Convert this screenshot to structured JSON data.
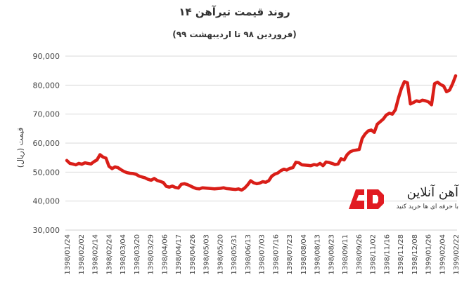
{
  "chart_data": {
    "type": "line",
    "title": "روند قیمت تیرآهن ۱۴",
    "subtitle": "(فروردین ۹۸ تا اردیبهشت ۹۹)",
    "ylabel": "قیمت (ریال)",
    "xlabel": "",
    "ylim": [
      30000,
      90000
    ],
    "y_ticks": [
      30000,
      40000,
      50000,
      60000,
      70000,
      80000,
      90000
    ],
    "y_tick_labels": [
      "30,000",
      "40,000",
      "50,000",
      "60,000",
      "70,000",
      "80,000",
      "90,000"
    ],
    "x_tick_labels": [
      "1398/01/24",
      "1398/02/02",
      "1398/02/14",
      "1398/02/24",
      "1398/03/04",
      "1398/03/20",
      "1398/03/29",
      "1398/04/06",
      "1398/04/17",
      "1398/04/26",
      "1398/05/03",
      "1398/05/20",
      "1398/05/31",
      "1398/06/13",
      "1398/07/03",
      "1398/07/16",
      "1398/07/23",
      "1398/08/04",
      "1398/08/13",
      "1398/08/23",
      "1398/09/11",
      "1398/09/26",
      "1398/11/02",
      "1398/11/16",
      "1398/11/28",
      "1398/12/08",
      "1399/01/26",
      "1399/02/04",
      "1399/02/22"
    ],
    "grid": true,
    "legend": "none",
    "line_color": "#d91e18",
    "series": [
      {
        "values": [
          54000,
          53000,
          52800,
          52500,
          53000,
          52700,
          53200,
          53000,
          52800,
          53600,
          54200,
          56000,
          55200,
          54800,
          52000,
          51200,
          51800,
          51500,
          50800,
          50200,
          49800,
          49600,
          49500,
          49200,
          48600,
          48300,
          48000,
          47500,
          47200,
          47800,
          47100,
          46800,
          46400,
          45100,
          44800,
          45200,
          44700,
          44500,
          45800,
          46000,
          45700,
          45200,
          44700,
          44300,
          44200,
          44600,
          44500,
          44400,
          44300,
          44200,
          44300,
          44400,
          44600,
          44300,
          44200,
          44100,
          44000,
          44200,
          43800,
          44500,
          45600,
          47000,
          46300,
          46000,
          46200,
          46700,
          46500,
          47000,
          48600,
          49300,
          49700,
          50500,
          51000,
          50700,
          51300,
          51500,
          53400,
          53200,
          52500,
          52400,
          52300,
          52200,
          52600,
          52400,
          53000,
          52200,
          53500,
          53300,
          53000,
          52600,
          52800,
          54600,
          54200,
          56000,
          57000,
          57400,
          57600,
          57800,
          61600,
          63200,
          64200,
          64500,
          63700,
          66500,
          67400,
          68300,
          69700,
          70300,
          70000,
          71500,
          75500,
          78800,
          81200,
          80800,
          73500,
          74000,
          74600,
          74300,
          74800,
          74600,
          74200,
          73200,
          80500,
          81000,
          80200,
          79700,
          77700,
          78300,
          80500,
          83200
        ]
      }
    ]
  },
  "logo": {
    "name": "آهن آنلاین",
    "tagline": "با حرفه ای ها خرید کنید",
    "brand_color": "#e11b22"
  }
}
